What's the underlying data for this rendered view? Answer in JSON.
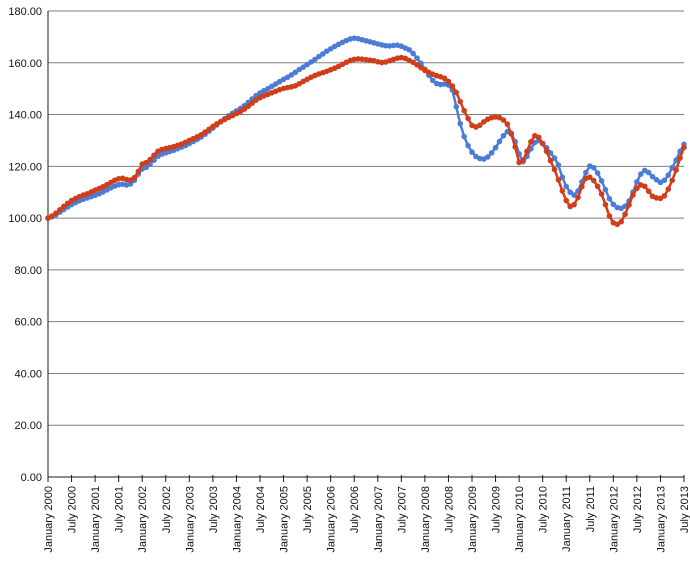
{
  "chart_data": {
    "type": "line",
    "title": "",
    "x_axis": {
      "frequency": "monthly",
      "start": "January 2000",
      "end": "July 2013",
      "tick_every_n_months": 6,
      "tick_labels": [
        "January 2000",
        "July 2000",
        "January 2001",
        "July 2001",
        "January 2002",
        "July 2002",
        "January 2003",
        "July 2003",
        "January 2004",
        "July 2004",
        "January 2005",
        "July 2005",
        "January 2006",
        "July 2006",
        "January 2007",
        "July 2007",
        "January 2008",
        "July 2008",
        "January 2009",
        "July 2009",
        "January 2010",
        "July 2010",
        "January 2011",
        "July 2011",
        "January 2012",
        "July 2012",
        "January 2013",
        "July 2013"
      ]
    },
    "y_axis": {
      "min": 0,
      "max": 180,
      "step": 20,
      "gridlines": true,
      "tick_labels": [
        "0.00",
        "20.00",
        "40.00",
        "60.00",
        "80.00",
        "100.00",
        "120.00",
        "140.00",
        "160.00",
        "180.00"
      ]
    },
    "legend": "none",
    "series": [
      {
        "name": "blue-series",
        "color": "#4b7dd7",
        "marker": "circle",
        "values": [
          100.0,
          100.5,
          101.3,
          102.3,
          103.3,
          104.3,
          105.2,
          106.0,
          106.7,
          107.3,
          107.8,
          108.3,
          108.8,
          109.4,
          110.1,
          110.9,
          111.7,
          112.4,
          112.9,
          113.1,
          112.8,
          113.2,
          114.6,
          117.0,
          119.0,
          119.6,
          120.8,
          122.4,
          123.9,
          124.7,
          125.2,
          125.7,
          126.2,
          126.8,
          127.4,
          128.0,
          128.8,
          129.6,
          130.4,
          131.3,
          132.4,
          133.6,
          134.8,
          136.0,
          137.2,
          138.4,
          139.5,
          140.5,
          141.4,
          142.3,
          143.4,
          144.7,
          146.0,
          147.3,
          148.3,
          149.2,
          150.0,
          150.9,
          151.8,
          152.7,
          153.6,
          154.4,
          155.3,
          156.3,
          157.4,
          158.3,
          159.3,
          160.3,
          161.3,
          162.4,
          163.4,
          164.5,
          165.4,
          166.3,
          167.1,
          167.9,
          168.6,
          169.2,
          169.5,
          169.3,
          168.9,
          168.5,
          168.1,
          167.7,
          167.3,
          166.9,
          166.6,
          166.5,
          166.7,
          166.8,
          166.4,
          165.7,
          165.0,
          163.6,
          161.8,
          159.8,
          157.5,
          155.2,
          153.2,
          152.0,
          151.6,
          151.8,
          151.4,
          149.5,
          143.0,
          136.5,
          131.5,
          128.0,
          125.5,
          123.8,
          123.0,
          122.8,
          123.6,
          125.2,
          127.2,
          129.6,
          131.8,
          133.4,
          132.8,
          129.5,
          124.8,
          121.8,
          123.8,
          126.8,
          129.2,
          129.9,
          128.8,
          127.2,
          125.2,
          123.2,
          120.5,
          115.8,
          112.2,
          110.0,
          108.9,
          110.5,
          114.0,
          117.6,
          120.1,
          119.5,
          117.4,
          114.4,
          111.0,
          107.5,
          105.3,
          104.1,
          103.8,
          104.6,
          106.6,
          110.0,
          114.0,
          117.0,
          118.4,
          117.6,
          116.0,
          114.8,
          113.8,
          114.6,
          116.6,
          119.5,
          122.4,
          125.8,
          128.5
        ]
      },
      {
        "name": "red-series",
        "color": "#d03e19",
        "marker": "circle",
        "values": [
          100.0,
          100.8,
          101.9,
          103.2,
          104.5,
          105.7,
          106.8,
          107.6,
          108.3,
          108.9,
          109.4,
          110.1,
          110.8,
          111.4,
          112.1,
          112.9,
          113.8,
          114.6,
          115.2,
          115.4,
          114.9,
          114.7,
          115.6,
          118.0,
          120.9,
          121.4,
          122.6,
          124.3,
          125.8,
          126.5,
          126.9,
          127.2,
          127.6,
          128.1,
          128.6,
          129.3,
          130.0,
          130.7,
          131.4,
          132.2,
          133.2,
          134.3,
          135.4,
          136.4,
          137.3,
          138.1,
          138.9,
          139.6,
          140.4,
          141.2,
          142.1,
          143.2,
          144.4,
          145.6,
          146.5,
          147.2,
          147.8,
          148.4,
          149.0,
          149.6,
          150.1,
          150.4,
          150.7,
          151.1,
          151.9,
          152.8,
          153.6,
          154.4,
          155.1,
          155.7,
          156.2,
          156.7,
          157.3,
          157.9,
          158.6,
          159.4,
          160.2,
          160.9,
          161.3,
          161.5,
          161.4,
          161.2,
          161.0,
          160.8,
          160.4,
          160.1,
          160.3,
          160.8,
          161.3,
          161.8,
          162.0,
          161.7,
          160.9,
          160.2,
          159.2,
          158.1,
          157.0,
          156.3,
          155.6,
          155.0,
          154.6,
          154.0,
          152.8,
          151.0,
          148.5,
          145.0,
          141.5,
          138.5,
          135.8,
          135.2,
          135.9,
          137.2,
          138.2,
          138.8,
          139.1,
          138.8,
          137.9,
          136.3,
          132.5,
          127.5,
          121.5,
          122.3,
          125.8,
          129.5,
          131.8,
          131.2,
          128.8,
          125.8,
          122.2,
          118.8,
          114.8,
          110.5,
          106.8,
          104.5,
          105.2,
          108.0,
          112.2,
          115.4,
          115.8,
          114.5,
          112.3,
          109.3,
          105.2,
          100.8,
          98.2,
          97.6,
          98.6,
          101.5,
          105.1,
          108.9,
          111.5,
          112.8,
          112.3,
          110.4,
          108.4,
          107.8,
          107.6,
          108.6,
          111.2,
          114.6,
          118.6,
          123.2,
          127.3
        ]
      }
    ],
    "plot_style": {
      "background": "#ffffff",
      "gridline_color": "#808080",
      "axis_color": "#1a1a1a",
      "label_color": "#111111",
      "line_width": 2.5,
      "marker_radius": 2.8,
      "x_labels_rotation_deg": -90
    }
  }
}
